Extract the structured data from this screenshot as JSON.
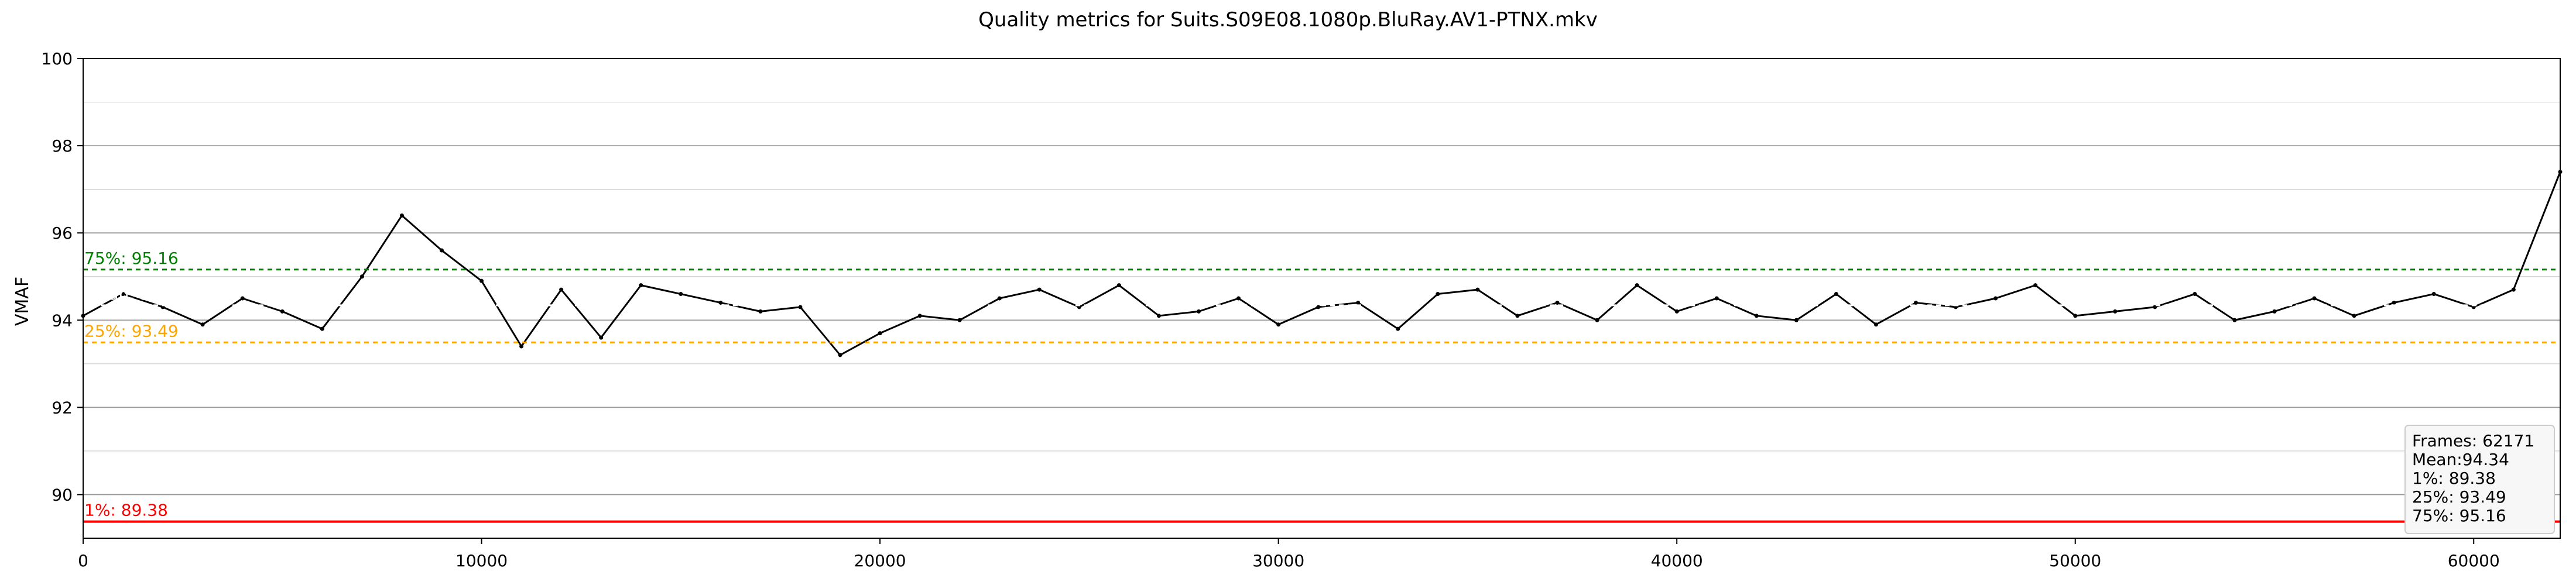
{
  "chart_data": {
    "type": "line",
    "title": "Quality metrics for Suits.S09E08.1080p.BluRay.AV1-PTNX.mkv",
    "xlabel": "",
    "ylabel": "VMAF",
    "xlim": [
      0,
      62171
    ],
    "ylim": [
      89,
      100
    ],
    "x_ticks": [
      0,
      10000,
      20000,
      30000,
      40000,
      50000,
      60000
    ],
    "y_ticks": [
      90,
      92,
      94,
      96,
      98,
      100
    ],
    "grid": {
      "horizontal": true,
      "major_step": 2,
      "minor_step": 1,
      "vertical": false
    },
    "series": [
      {
        "name": "",
        "color": "#000000",
        "x": [
          0,
          1000,
          2000,
          3000,
          4000,
          5000,
          6000,
          7000,
          8000,
          9000,
          10000,
          11000,
          12000,
          13000,
          14000,
          15000,
          16000,
          17000,
          18000,
          19000,
          20000,
          21000,
          22000,
          23000,
          24000,
          25000,
          26000,
          27000,
          28000,
          29000,
          30000,
          31000,
          32000,
          33000,
          34000,
          35000,
          36000,
          37000,
          38000,
          39000,
          40000,
          41000,
          42000,
          43000,
          44000,
          45000,
          46000,
          47000,
          48000,
          49000,
          50000,
          51000,
          52000,
          53000,
          54000,
          55000,
          56000,
          57000,
          58000,
          59000,
          60000,
          61000,
          62171
        ],
        "values": [
          94.1,
          94.6,
          94.3,
          93.9,
          94.5,
          94.2,
          93.8,
          95.0,
          96.4,
          95.6,
          94.9,
          93.4,
          94.7,
          93.6,
          94.8,
          94.6,
          94.4,
          94.2,
          94.3,
          93.2,
          93.7,
          94.1,
          94.0,
          94.5,
          94.7,
          94.3,
          94.8,
          94.1,
          94.2,
          94.5,
          93.9,
          94.3,
          94.4,
          93.8,
          94.6,
          94.7,
          94.1,
          94.4,
          94.0,
          94.8,
          94.2,
          94.5,
          94.1,
          94.0,
          94.6,
          93.9,
          94.4,
          94.3,
          94.5,
          94.8,
          94.1,
          94.2,
          94.3,
          94.6,
          94.0,
          94.2,
          94.5,
          94.1,
          94.4,
          94.6,
          94.3,
          94.7,
          97.4
        ]
      }
    ],
    "reference_lines": [
      {
        "label": "1%: 89.38",
        "value": 89.38,
        "color": "#ff0000",
        "style": "solid"
      },
      {
        "label": "25%: 93.49",
        "value": 93.49,
        "color": "#ffa500",
        "style": "dashed"
      },
      {
        "label": "Mean: 94.34",
        "value": 94.34,
        "color": "#ffffff",
        "style": "dashed"
      },
      {
        "label": "75%: 95.16",
        "value": 95.16,
        "color": "#008000",
        "style": "dashed"
      }
    ],
    "stats_box": {
      "position": "bottom-right",
      "lines": [
        "Frames: 62171",
        "Mean:94.34",
        "1%: 89.38",
        "25%: 93.49",
        "75%: 95.16"
      ]
    }
  }
}
